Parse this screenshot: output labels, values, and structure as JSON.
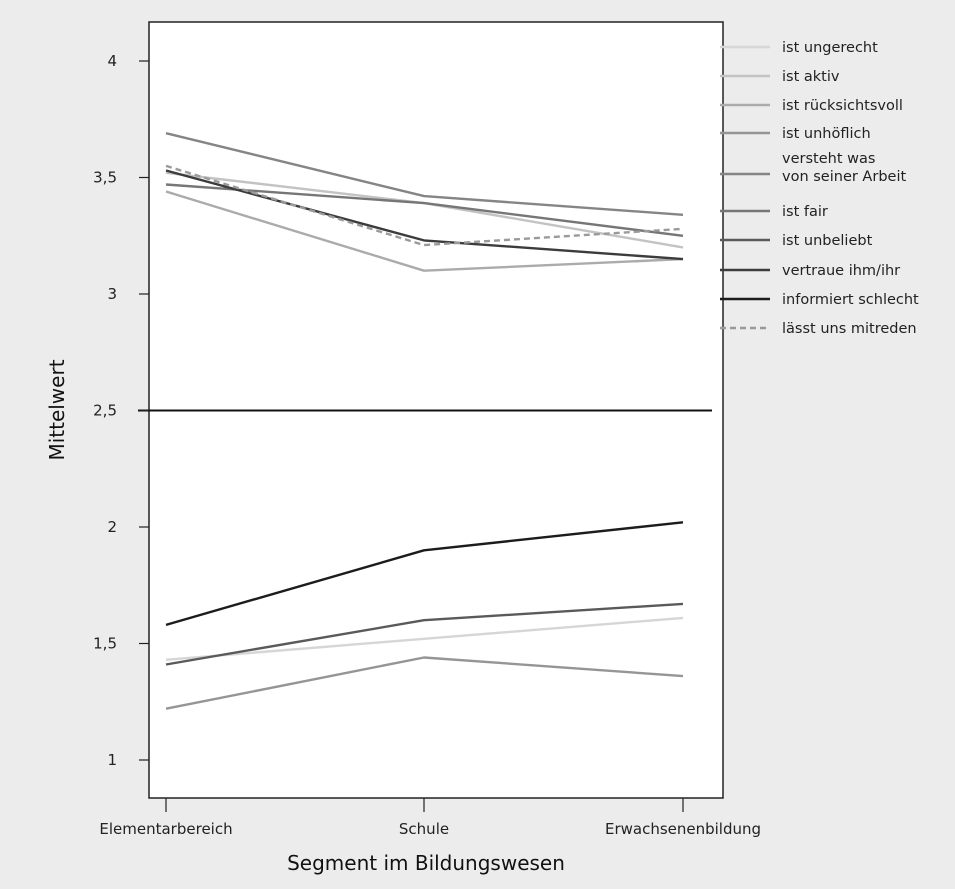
{
  "chart_data": {
    "type": "line",
    "categories": [
      "Elementarbereich",
      "Schule",
      "Erwachsenenbildung"
    ],
    "xlabel": "Segment im Bildungswesen",
    "ylabel": "Mittelwert",
    "ylim": [
      0.85,
      4.2
    ],
    "yticks": [
      1,
      1.5,
      2,
      2.5,
      3,
      3.5,
      4
    ],
    "ytick_labels": [
      "1",
      "1,5",
      "2",
      "2,5",
      "3",
      "3,5",
      "4"
    ],
    "reference_line": 2.5,
    "legend_position": "right",
    "series": [
      {
        "name": "ist ungerecht",
        "values": [
          1.43,
          1.52,
          1.61
        ],
        "color": "#d6d6d6",
        "dash": false
      },
      {
        "name": "ist aktiv",
        "values": [
          3.52,
          3.39,
          3.2
        ],
        "color": "#c3c3c3",
        "dash": false
      },
      {
        "name": "ist rücksichtsvoll",
        "values": [
          3.44,
          3.1,
          3.15
        ],
        "color": "#ababab",
        "dash": false
      },
      {
        "name": "ist unhöflich",
        "values": [
          1.22,
          1.44,
          1.36
        ],
        "color": "#959595",
        "dash": false
      },
      {
        "name": "versteht was\nvon seiner Arbeit",
        "values": [
          3.69,
          3.42,
          3.34
        ],
        "color": "#858585",
        "dash": false
      },
      {
        "name": "ist fair",
        "values": [
          3.47,
          3.39,
          3.25
        ],
        "color": "#767676",
        "dash": false
      },
      {
        "name": "ist unbeliebt",
        "values": [
          1.41,
          1.6,
          1.67
        ],
        "color": "#5a5a5a",
        "dash": false
      },
      {
        "name": "vertraue ihm/ihr",
        "values": [
          3.53,
          3.23,
          3.15
        ],
        "color": "#3c3c3c",
        "dash": false
      },
      {
        "name": "informiert schlecht",
        "values": [
          1.58,
          1.9,
          2.02
        ],
        "color": "#1c1c1c",
        "dash": false
      },
      {
        "name": "lässt uns mitreden",
        "values": [
          3.55,
          3.21,
          3.28
        ],
        "color": "#9a9a9a",
        "dash": true
      }
    ]
  }
}
